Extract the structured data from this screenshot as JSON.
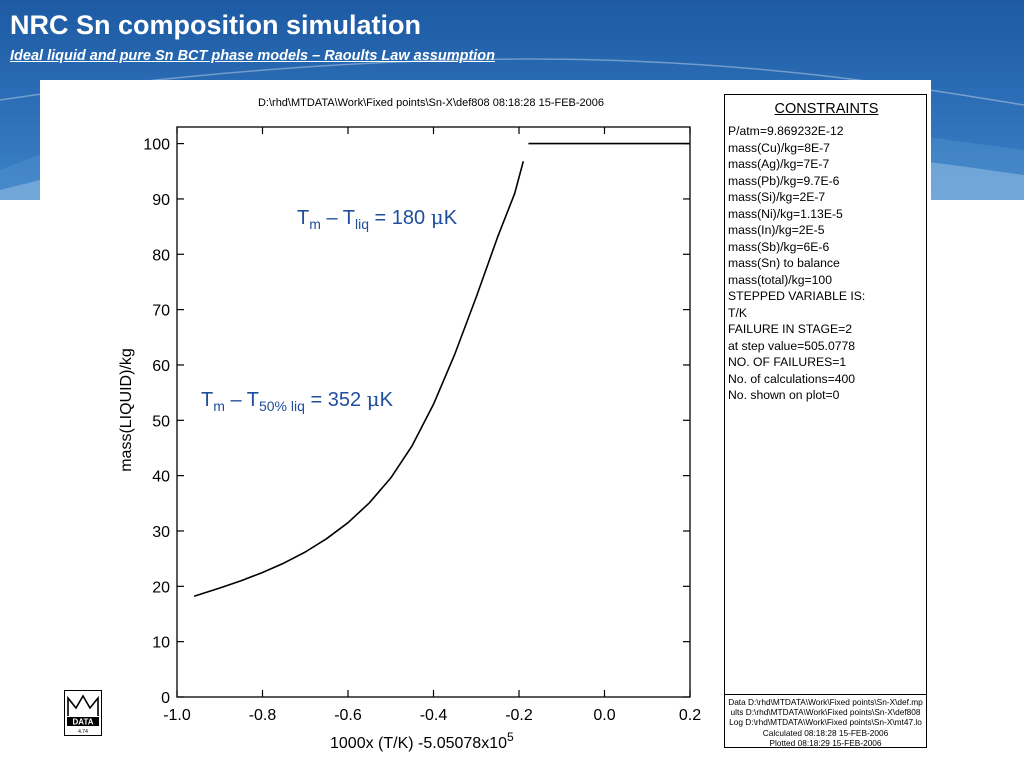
{
  "slide": {
    "title": "NRC Sn composition simulation",
    "subtitle": "Ideal liquid and pure Sn BCT phase models – Raoults Law assumption",
    "header_color": "#1f5aa3"
  },
  "chart_data": {
    "type": "line",
    "title": "D:\\rhd\\MTDATA\\Work\\Fixed points\\Sn-X\\def808  08:18:28 15-FEB-2006",
    "xlabel_main": "1000x (T/K) -5.05078x10",
    "xlabel_exp": "5",
    "ylabel": "mass(LIQUID)/kg",
    "xlim": [
      -1.0,
      0.2
    ],
    "ylim": [
      0,
      103
    ],
    "xticks": [
      -1.0,
      -0.8,
      -0.6,
      -0.4,
      -0.2,
      0.0,
      0.2
    ],
    "xtick_labels": [
      "-1.0",
      "-0.8",
      "-0.6",
      "-0.4",
      "-0.2",
      "0.0",
      "0.2"
    ],
    "yticks": [
      0,
      10,
      20,
      30,
      40,
      50,
      60,
      70,
      80,
      90,
      100
    ],
    "ytick_labels": [
      "0",
      "10",
      "20",
      "30",
      "40",
      "50",
      "60",
      "70",
      "80",
      "90",
      "100"
    ],
    "series": [
      {
        "values": [
          [
            -0.96,
            18.2
          ],
          [
            -0.9,
            19.7
          ],
          [
            -0.85,
            21.0
          ],
          [
            -0.8,
            22.5
          ],
          [
            -0.75,
            24.2
          ],
          [
            -0.7,
            26.2
          ],
          [
            -0.65,
            28.6
          ],
          [
            -0.6,
            31.5
          ],
          [
            -0.55,
            35.1
          ],
          [
            -0.5,
            39.6
          ],
          [
            -0.45,
            45.4
          ],
          [
            -0.4,
            52.9
          ],
          [
            -0.35,
            62.0
          ],
          [
            -0.3,
            72.3
          ],
          [
            -0.25,
            83.1
          ],
          [
            -0.21,
            91.0
          ],
          [
            -0.19,
            96.8
          ]
        ]
      },
      {
        "values": [
          [
            -0.178,
            100.0
          ],
          [
            0.2,
            100.0
          ]
        ]
      }
    ],
    "annotations": [
      {
        "T": "T",
        "sub1": "m",
        "dash": " – T",
        "sub2": "liq",
        "rest": " = 180 ",
        "mu": "μ",
        "unit": "K"
      },
      {
        "T": "T",
        "sub1": "m",
        "dash": " – T",
        "sub2": "50% liq",
        "rest": " = 352 ",
        "mu": "μ",
        "unit": "K"
      }
    ],
    "grid": false,
    "line_color": "#000000",
    "annotation_color": "#1f4e9c"
  },
  "constraints": {
    "title": "CONSTRAINTS",
    "lines": [
      "P/atm=9.869232E-12",
      "mass(Cu)/kg=8E-7",
      "mass(Ag)/kg=7E-7",
      "mass(Pb)/kg=9.7E-6",
      "mass(Si)/kg=2E-7",
      "mass(Ni)/kg=1.13E-5",
      "mass(In)/kg=2E-5",
      "mass(Sb)/kg=6E-6",
      "mass(Sn) to balance",
      "mass(total)/kg=100",
      "STEPPED VARIABLE IS:",
      "T/K",
      "FAILURE IN STAGE=2",
      "at step value=505.0778",
      "NO. OF FAILURES=1",
      "No. of calculations=400",
      "No. shown on plot=0"
    ],
    "footer": [
      "Data D:\\rhd\\MTDATA\\Work\\Fixed points\\Sn-X\\def.mp",
      "ults D:\\rhd\\MTDATA\\Work\\Fixed points\\Sn-X\\def808",
      "Log D:\\rhd\\MTDATA\\Work\\Fixed points\\Sn-X\\mt47.lo",
      "Calculated 08:18:28 15-FEB-2006",
      "Plotted  08:18:29 15-FEB-2006"
    ]
  },
  "logo": {
    "text": "DATA",
    "version": "4.74"
  }
}
